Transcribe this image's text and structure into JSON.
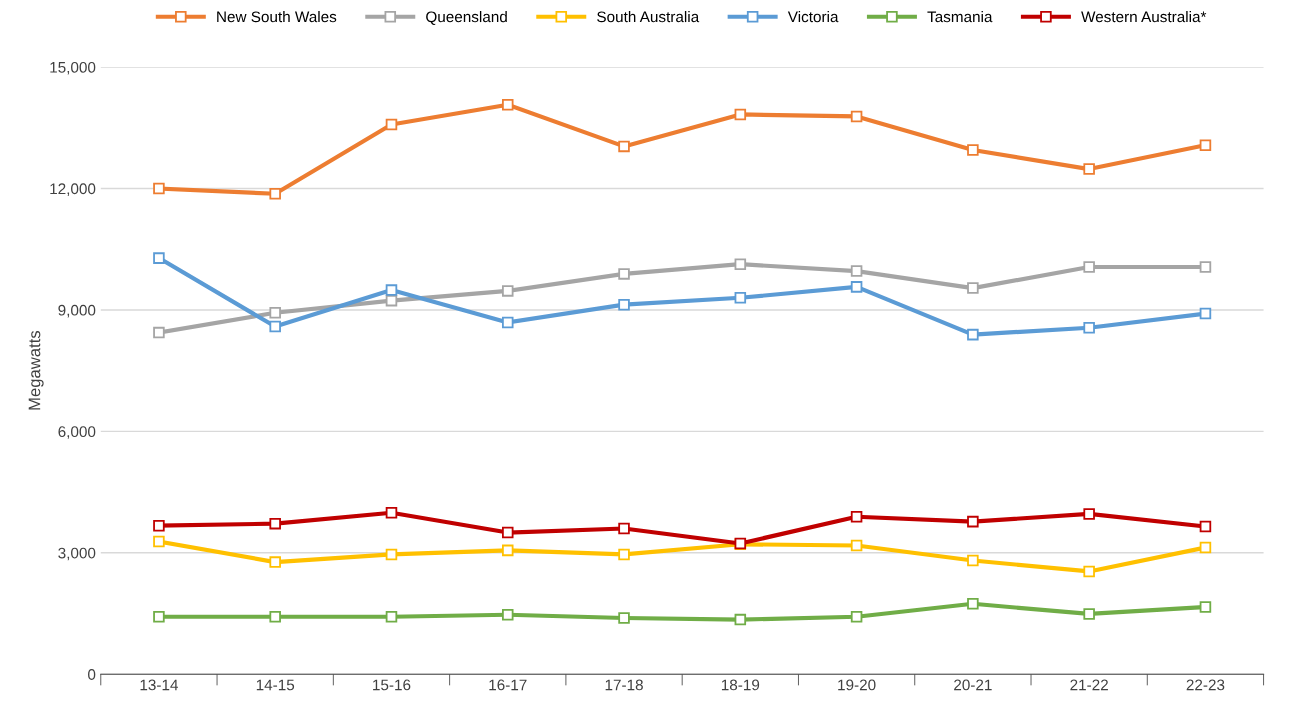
{
  "chart_data": {
    "type": "line",
    "ylabel": "Megawatts",
    "categories": [
      "13-14",
      "14-15",
      "15-16",
      "16-17",
      "17-18",
      "18-19",
      "19-20",
      "20-21",
      "21-22",
      "22-23"
    ],
    "series": [
      {
        "name": "New South Wales",
        "color": "#ed7d31",
        "values": [
          12000,
          11870,
          13580,
          14070,
          13040,
          13830,
          13780,
          12950,
          12480,
          13070
        ]
      },
      {
        "name": "Queensland",
        "color": "#a5a5a5",
        "values": [
          8440,
          8930,
          9230,
          9470,
          9890,
          10130,
          9960,
          9540,
          10060,
          10060
        ]
      },
      {
        "name": "South Australia",
        "color": "#ffc000",
        "values": [
          3280,
          2770,
          2960,
          3060,
          2960,
          3210,
          3180,
          2810,
          2540,
          3130
        ]
      },
      {
        "name": "Victoria",
        "color": "#5b9bd5",
        "values": [
          10280,
          8590,
          9490,
          8690,
          9130,
          9300,
          9570,
          8390,
          8560,
          8910
        ]
      },
      {
        "name": "Tasmania",
        "color": "#70ad47",
        "values": [
          1420,
          1420,
          1420,
          1470,
          1390,
          1350,
          1420,
          1740,
          1490,
          1660
        ]
      },
      {
        "name": "Western Australia*",
        "color": "#c00000",
        "values": [
          3670,
          3720,
          3990,
          3500,
          3600,
          3230,
          3890,
          3770,
          3960,
          3650
        ]
      }
    ],
    "ylim": [
      0,
      15000
    ],
    "yticks": [
      0,
      {
        "value": 3000,
        "label": "3,000"
      },
      {
        "value": 6000,
        "label": "6,000"
      },
      {
        "value": 9000,
        "label": "9,000"
      },
      {
        "value": 12000,
        "label": "12,000"
      },
      {
        "value": 15000,
        "label": "15,000"
      }
    ],
    "grid": "y",
    "legend": "top",
    "marker": "square",
    "line_style": "solid"
  }
}
